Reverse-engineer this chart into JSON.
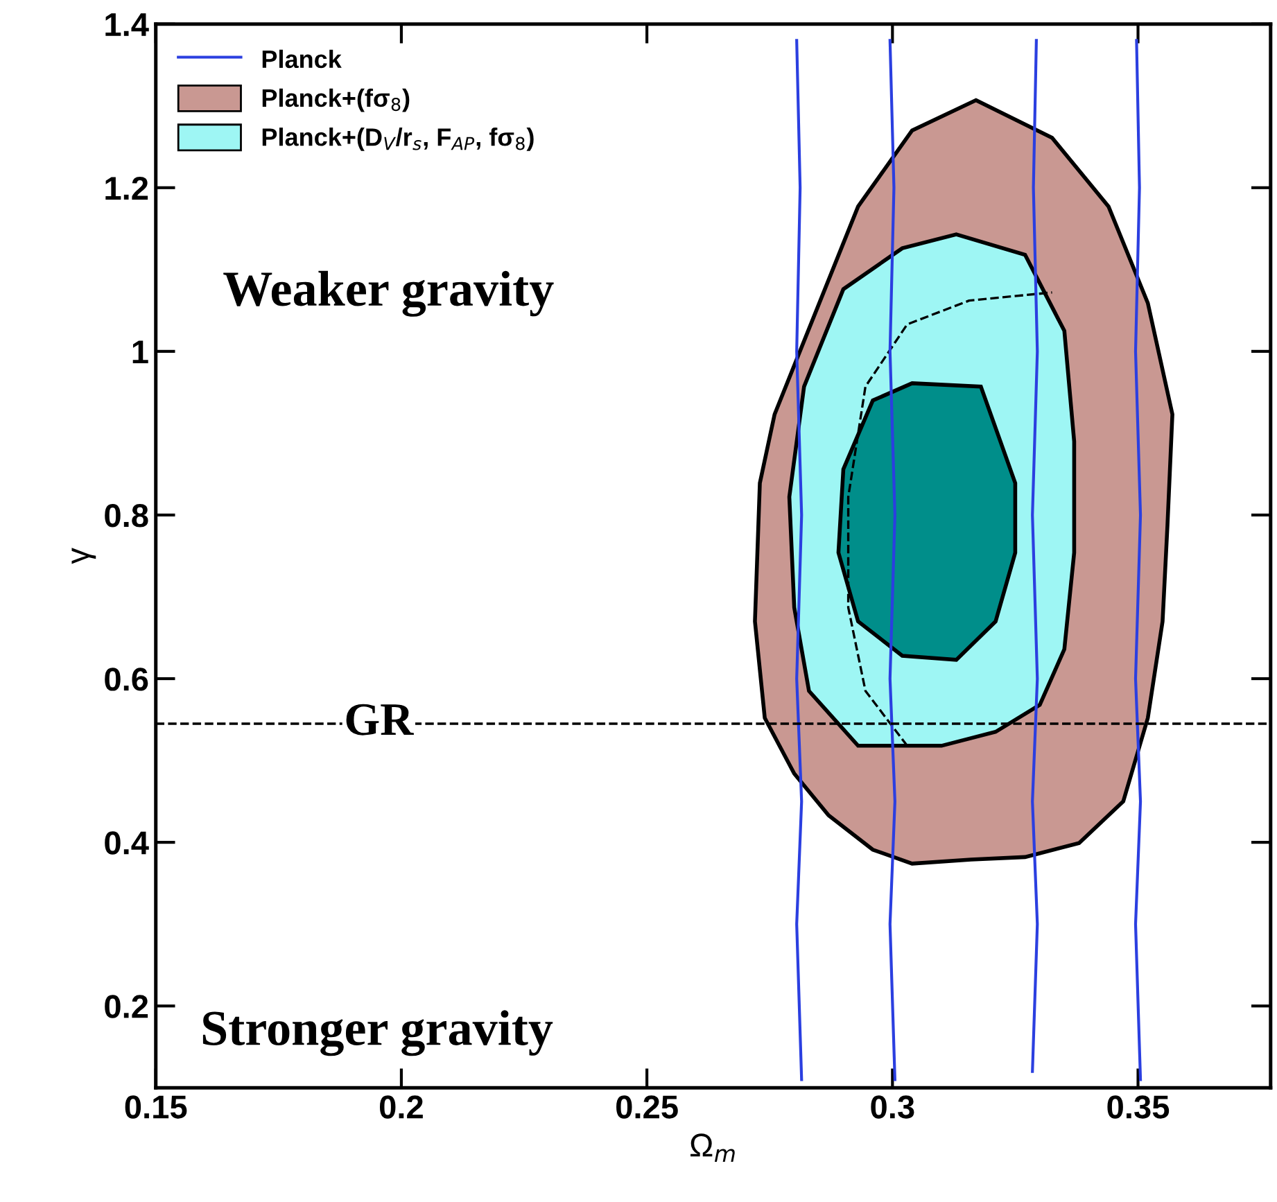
{
  "chart_data": {
    "type": "area",
    "xlabel": "Ω$_{m}$",
    "ylabel": "γ",
    "xlim": [
      0.15,
      0.377
    ],
    "ylim": [
      0.1,
      1.4
    ],
    "xticks": [
      0.15,
      0.2,
      0.25,
      0.3,
      0.35
    ],
    "yticks": [
      0.2,
      0.4,
      0.6,
      0.8,
      1,
      1.2,
      1.4
    ],
    "grid": false,
    "legend": "top left",
    "series": [
      {
        "name": "Planck",
        "type": "line",
        "color": "#2b3fe0",
        "x": [
          0.2815,
          0.2805,
          0.2815,
          0.2805,
          0.2815,
          0.2805,
          0.2812,
          0.2805
        ],
        "values": [
          0.11,
          0.3,
          0.45,
          0.6,
          0.8,
          1.0,
          1.2,
          1.38
        ]
      },
      {
        "name": "Planck+(fσ$_{8}$)",
        "color": "#c99892",
        "x": [
          0.317,
          0.3325,
          0.344,
          0.352,
          0.357,
          0.356,
          0.355,
          0.352,
          0.347,
          0.338,
          0.327,
          0.316,
          0.304,
          0.296,
          0.287,
          0.28,
          0.274,
          0.272,
          0.273,
          0.276,
          0.293,
          0.304
        ],
        "values": [
          1.307,
          1.261,
          1.177,
          1.059,
          0.923,
          0.788,
          0.67,
          0.552,
          0.45,
          0.399,
          0.382,
          0.379,
          0.374,
          0.391,
          0.433,
          0.484,
          0.552,
          0.67,
          0.839,
          0.923,
          1.177,
          1.27
        ]
      },
      {
        "name": "Planck+(D$_{V}$/r$_{s}$, F$_{AP}$, fσ$_{8}$)",
        "color": "#9ef6f4",
        "x": [
          0.313,
          0.327,
          0.335,
          0.337,
          0.337,
          0.335,
          0.33,
          0.321,
          0.31,
          0.293,
          0.283,
          0.28,
          0.279,
          0.282,
          0.29,
          0.302
        ],
        "values": [
          1.143,
          1.118,
          1.025,
          0.89,
          0.754,
          0.636,
          0.568,
          0.535,
          0.518,
          0.518,
          0.585,
          0.687,
          0.822,
          0.957,
          1.076,
          1.126
        ]
      },
      {
        "color": "#008e8a",
        "x": [
          0.304,
          0.318,
          0.325,
          0.325,
          0.321,
          0.313,
          0.302,
          0.293,
          0.289,
          0.29,
          0.296
        ],
        "values": [
          0.961,
          0.957,
          0.839,
          0.754,
          0.67,
          0.623,
          0.628,
          0.67,
          0.754,
          0.856,
          0.94
        ]
      },
      {
        "type": "line",
        "color": "#000000",
        "line_style": "dashed",
        "x": [
          0.303,
          0.2945,
          0.291,
          0.291,
          0.2945,
          0.303,
          0.3156,
          0.3325
        ],
        "values": [
          0.518,
          0.585,
          0.687,
          0.822,
          0.957,
          1.033,
          1.062,
          1.072
        ]
      },
      {
        "type": "line",
        "color": "#2b3fe0",
        "x": [
          0.3005,
          0.2995,
          0.3005,
          0.2995,
          0.3005,
          0.2995,
          0.3003,
          0.2995
        ],
        "values": [
          0.11,
          0.3,
          0.45,
          0.6,
          0.8,
          1.0,
          1.2,
          1.38
        ]
      },
      {
        "type": "line",
        "color": "#2b3fe0",
        "x": [
          0.3285,
          0.3295,
          0.3285,
          0.3295,
          0.3285,
          0.3295,
          0.3287,
          0.3293
        ],
        "values": [
          0.12,
          0.3,
          0.45,
          0.6,
          0.8,
          1.0,
          1.2,
          1.38
        ]
      },
      {
        "type": "line",
        "color": "#2b3fe0",
        "x": [
          0.3505,
          0.3495,
          0.3505,
          0.3495,
          0.3505,
          0.3495,
          0.3503,
          0.3497
        ],
        "values": [
          0.11,
          0.3,
          0.45,
          0.6,
          0.8,
          1.0,
          1.2,
          1.38
        ]
      }
    ],
    "ref_lines": [
      {
        "axis": "y",
        "value": 0.545,
        "label": "GR",
        "color": "#000000",
        "line_style": "dashed"
      }
    ],
    "annotations": [
      "Weaker gravity",
      "Stronger gravity"
    ]
  }
}
